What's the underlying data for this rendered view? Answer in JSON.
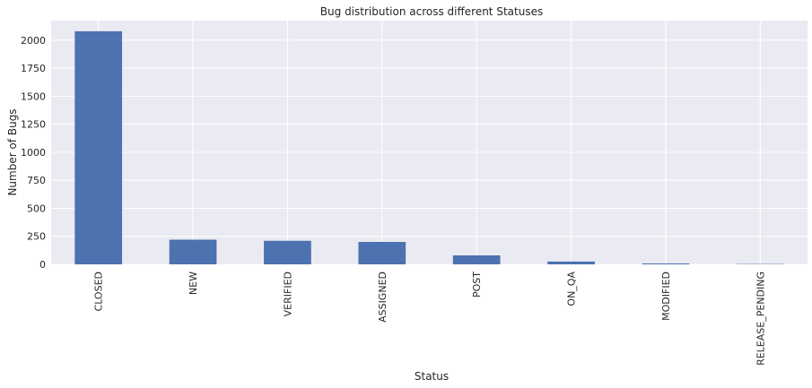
{
  "chart_data": {
    "type": "bar",
    "title": "Bug distribution across different Statuses",
    "xlabel": "Status",
    "ylabel": "Number of Bugs",
    "categories": [
      "CLOSED",
      "NEW",
      "VERIFIED",
      "ASSIGNED",
      "POST",
      "ON_QA",
      "MODIFIED",
      "RELEASE_PENDING"
    ],
    "values": [
      2080,
      220,
      210,
      200,
      80,
      25,
      8,
      3
    ],
    "ylim": [
      0,
      2175
    ],
    "yticks": [
      0,
      250,
      500,
      750,
      1000,
      1250,
      1500,
      1750,
      2000
    ],
    "grid": true,
    "colors": {
      "bar": "#4c72b0",
      "background": "#eaeaf2",
      "grid": "#ffffff"
    }
  }
}
